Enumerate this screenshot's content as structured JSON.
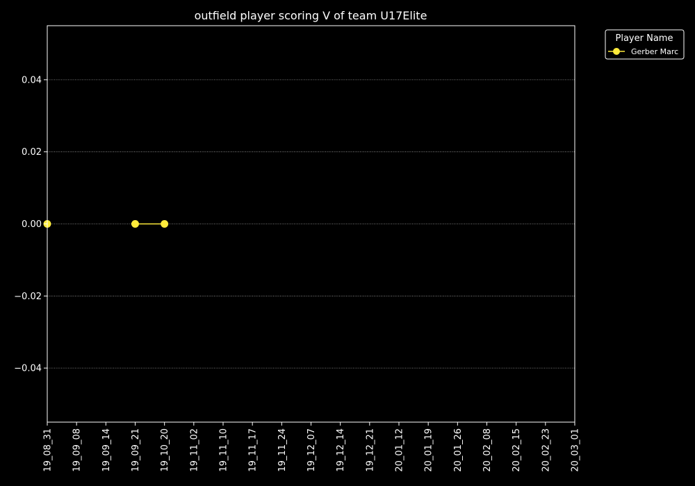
{
  "chart_data": {
    "type": "line",
    "title": "outfield player scoring V of team U17Elite",
    "xlabel": "",
    "ylabel": "",
    "categories": [
      "19_08_31",
      "19_09_08",
      "19_09_14",
      "19_09_21",
      "19_10_20",
      "19_11_02",
      "19_11_10",
      "19_11_17",
      "19_11_24",
      "19_12_07",
      "19_12_14",
      "19_12_21",
      "20_01_12",
      "20_01_19",
      "20_01_26",
      "20_02_08",
      "20_02_15",
      "20_02_23",
      "20_03_01"
    ],
    "ylim": [
      -0.055,
      0.055
    ],
    "yticks": [
      -0.04,
      -0.02,
      0.0,
      0.02,
      0.04
    ],
    "ytick_labels": [
      "−0.04",
      "−0.02",
      "0.00",
      "0.02",
      "0.04"
    ],
    "grid": "horizontal-dotted",
    "legend": {
      "title": "Player Name",
      "placement": "outside-top-right"
    },
    "series": [
      {
        "name": "Gerber Marc",
        "color": "#ffeb3b",
        "values": [
          0,
          null,
          null,
          0,
          0,
          null,
          null,
          null,
          null,
          null,
          null,
          null,
          null,
          null,
          null,
          null,
          null,
          null,
          null
        ]
      }
    ]
  },
  "colors": {
    "background": "#000000",
    "axes": "#ffffff",
    "grid": "#9e9e9e"
  }
}
